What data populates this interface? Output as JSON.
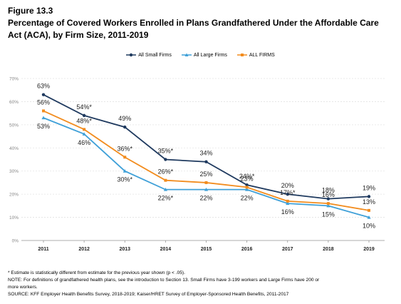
{
  "figure_label": "Figure 13.3",
  "title": "Percentage of Covered Workers Enrolled in Plans Grandfathered Under the Affordable Care Act (ACA), by Firm Size, 2011-2019",
  "chart_data": {
    "type": "line",
    "title": "Percentage of Covered Workers Enrolled in Plans Grandfathered Under the Affordable Care Act (ACA), by Firm Size, 2011-2019",
    "xlabel": "",
    "ylabel": "",
    "x": [
      "2011",
      "2012",
      "2013",
      "2014",
      "2015",
      "2016",
      "2017",
      "2018",
      "2019"
    ],
    "ylim": [
      0,
      70
    ],
    "yticks": [
      0,
      10,
      20,
      30,
      40,
      50,
      60,
      70
    ],
    "ytick_labels": [
      "0%",
      "10%",
      "20%",
      "30%",
      "40%",
      "50%",
      "60%",
      "70%"
    ],
    "grid": true,
    "legend_position": "top",
    "series": [
      {
        "name": "All Small Firms",
        "color": "#1f3a5f",
        "marker": "circle",
        "values": [
          63,
          54,
          49,
          35,
          34,
          24,
          20,
          18,
          19
        ],
        "labels": [
          "63%",
          "54%*",
          "49%",
          "35%*",
          "34%",
          "24%*",
          "20%",
          "18%",
          "19%"
        ],
        "label_pos": [
          "above",
          "above",
          "above",
          "above",
          "above",
          "above",
          "above",
          "above",
          "above"
        ]
      },
      {
        "name": "All Large Firms",
        "color": "#3fa0d8",
        "marker": "triangle",
        "values": [
          53,
          46,
          30,
          22,
          22,
          22,
          16,
          15,
          10
        ],
        "labels": [
          "53%",
          "46%",
          "30%*",
          "22%*",
          "22%",
          "22%",
          "16%",
          "15%",
          "10%"
        ],
        "label_pos": [
          "below",
          "below",
          "below",
          "below",
          "below",
          "below",
          "below",
          "below",
          "below"
        ]
      },
      {
        "name": "ALL FIRMS",
        "color": "#f28c1e",
        "marker": "square",
        "values": [
          56,
          48,
          36,
          26,
          25,
          23,
          17,
          16,
          13
        ],
        "labels": [
          "56%",
          "48%*",
          "36%*",
          "26%*",
          "25%",
          "23%",
          "17%*",
          "16%",
          "13%"
        ],
        "label_pos": [
          "above",
          "above",
          "above",
          "above",
          "above",
          "above",
          "above",
          "above",
          "above"
        ]
      }
    ]
  },
  "notes": {
    "line1": "* Estimate is statistically different from estimate for the previous year shown (p < .05).",
    "line2": "NOTE: For definitions of grandfathered health plans, see the introduction to Section 13. Small Firms have 3-199 workers and Large Firms have 200 or",
    "line3": "more workers.",
    "line4": "SOURCE: KFF Employer Health Benefits Survey, 2018-2019; Kaiser/HRET Survey of Employer-Sponsored Health Benefits, 2011-2017"
  }
}
